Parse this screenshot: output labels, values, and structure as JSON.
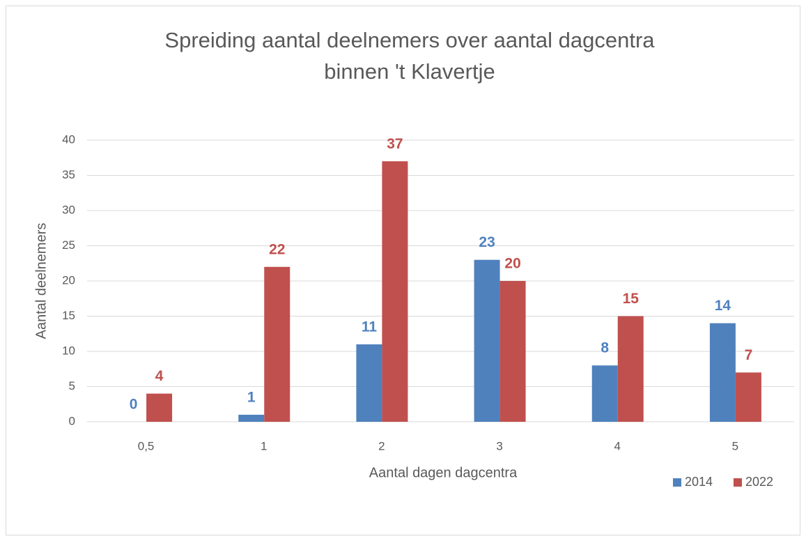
{
  "chart_data": {
    "type": "bar",
    "title": [
      "Spreiding aantal deelnemers over aantal dagcentra",
      "binnen 't Klavertje"
    ],
    "x_label": "Aantal dagen dagcentra",
    "y_label": "Aantal deelnemers",
    "categories": [
      "0,5",
      "1",
      "2",
      "3",
      "4",
      "5"
    ],
    "series": [
      {
        "name": "2014",
        "color": "#4f81bd",
        "values": [
          0,
          1,
          11,
          23,
          8,
          14
        ]
      },
      {
        "name": "2022",
        "color": "#c0504d",
        "values": [
          4,
          22,
          37,
          20,
          15,
          7
        ]
      }
    ],
    "ylim": [
      0,
      40
    ],
    "yticks": [
      0,
      5,
      10,
      15,
      20,
      25,
      30,
      35,
      40
    ],
    "grid": true,
    "legend": "bottom-right",
    "data_labels": true
  }
}
